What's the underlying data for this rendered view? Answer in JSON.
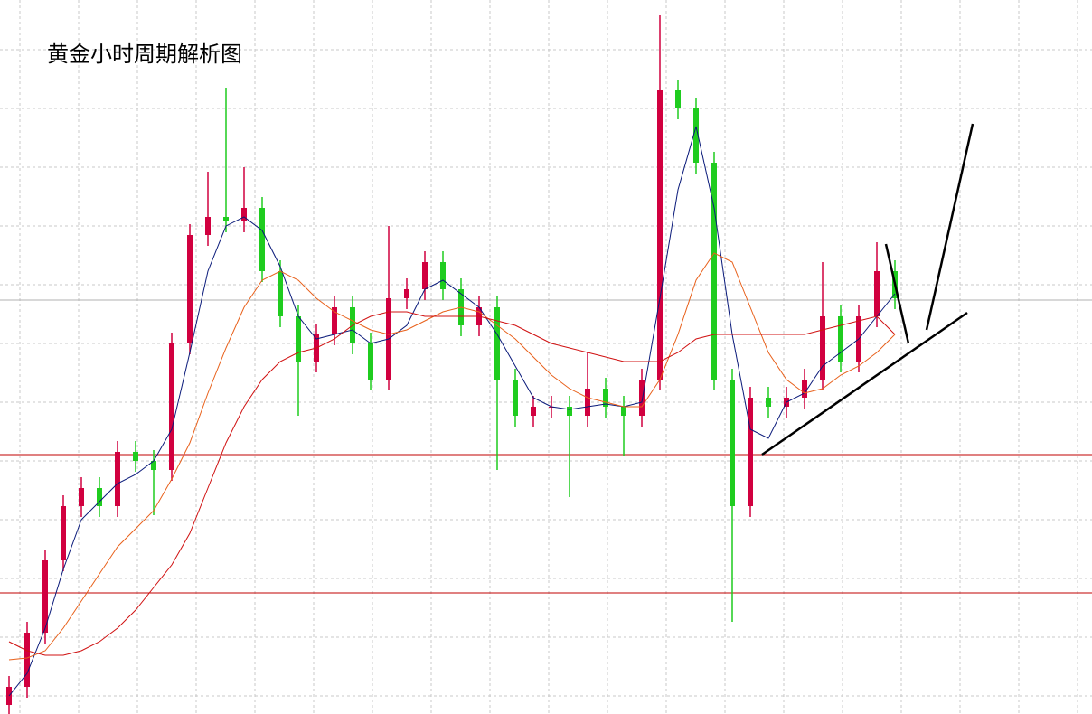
{
  "chart_data": {
    "type": "candlestick",
    "title": "黄金小时周期解析图",
    "ylim": [
      0,
      790
    ],
    "up_color": "#d1003f",
    "down_color": "#1fcc1f",
    "open": [
      10,
      30,
      90,
      170,
      230,
      250,
      230,
      290,
      280,
      270,
      410,
      530,
      550,
      545,
      560,
      490,
      440,
      390,
      420,
      450,
      410,
      370,
      460,
      470,
      500,
      470,
      430,
      450,
      370,
      330,
      340,
      340,
      330,
      360,
      340,
      330,
      370,
      690,
      670,
      610,
      370,
      230,
      350,
      340,
      350,
      370,
      440,
      390,
      440,
      490
    ],
    "high": [
      42,
      102,
      182,
      242,
      262,
      262,
      302,
      302,
      292,
      422,
      542,
      600,
      693,
      605,
      572,
      502,
      452,
      432,
      462,
      462,
      422,
      540,
      482,
      512,
      512,
      482,
      462,
      462,
      382,
      352,
      352,
      352,
      400,
      372,
      352,
      382,
      773,
      702,
      682,
      622,
      382,
      362,
      362,
      362,
      382,
      500,
      452,
      452,
      522,
      502
    ],
    "low": [
      0,
      18,
      78,
      158,
      218,
      218,
      218,
      268,
      220,
      258,
      398,
      518,
      533,
      533,
      478,
      428,
      330,
      378,
      408,
      398,
      358,
      358,
      448,
      458,
      458,
      418,
      418,
      270,
      318,
      318,
      328,
      240,
      318,
      328,
      285,
      318,
      358,
      658,
      598,
      358,
      102,
      218,
      328,
      328,
      338,
      358,
      378,
      378,
      428,
      448
    ],
    "close": [
      30,
      90,
      170,
      230,
      250,
      230,
      290,
      280,
      270,
      410,
      530,
      550,
      545,
      560,
      490,
      440,
      390,
      420,
      450,
      410,
      370,
      460,
      470,
      500,
      470,
      430,
      450,
      370,
      330,
      340,
      340,
      330,
      360,
      340,
      330,
      370,
      690,
      670,
      610,
      370,
      230,
      350,
      340,
      350,
      370,
      440,
      390,
      440,
      490,
      460
    ],
    "lines": [
      {
        "color": "#0a1a7a",
        "values": [
          20,
          45,
          95,
          160,
          215,
          235,
          255,
          265,
          280,
          315,
          400,
          490,
          540,
          550,
          535,
          495,
          440,
          415,
          420,
          425,
          410,
          415,
          430,
          470,
          480,
          465,
          450,
          420,
          385,
          350,
          340,
          337,
          340,
          343,
          340,
          345,
          460,
          580,
          650,
          560,
          420,
          315,
          305,
          345,
          355,
          385,
          400,
          415,
          440,
          465
        ]
      },
      {
        "color": "#e8601a",
        "values": [
          60,
          62,
          70,
          95,
          125,
          155,
          185,
          205,
          225,
          260,
          300,
          355,
          405,
          450,
          480,
          490,
          480,
          460,
          445,
          435,
          425,
          420,
          425,
          435,
          445,
          450,
          445,
          430,
          415,
          395,
          375,
          360,
          350,
          345,
          340,
          340,
          370,
          420,
          480,
          510,
          500,
          450,
          400,
          370,
          355,
          360,
          375,
          385,
          400,
          420
        ]
      },
      {
        "color": "#d01010",
        "values": [
          80,
          70,
          65,
          65,
          70,
          80,
          95,
          115,
          140,
          165,
          200,
          250,
          300,
          340,
          370,
          390,
          400,
          405,
          415,
          430,
          440,
          445,
          445,
          440,
          440,
          440,
          440,
          435,
          430,
          420,
          410,
          405,
          400,
          395,
          390,
          390,
          390,
          400,
          415,
          420,
          420,
          420,
          420,
          420,
          420,
          425,
          430,
          435,
          440,
          420
        ]
      }
    ],
    "levels": [
      {
        "value": 287,
        "color": "#c00000"
      },
      {
        "value": 134,
        "color": "#c00000"
      }
    ]
  }
}
